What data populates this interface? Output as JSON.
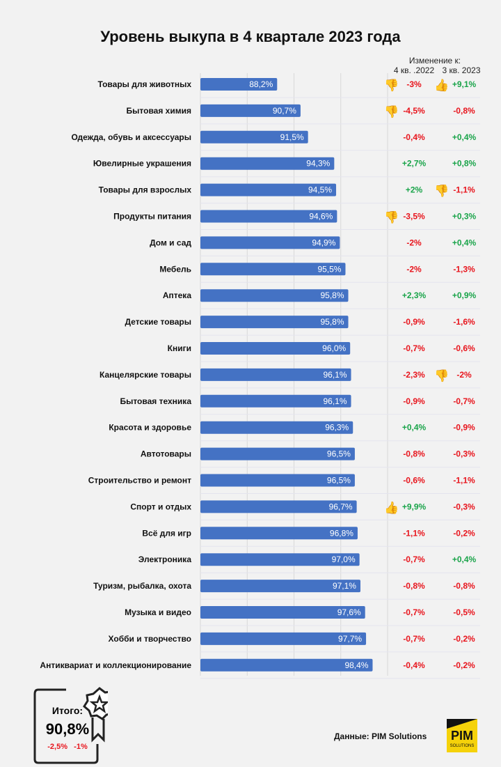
{
  "title": "Уровень выкупа в 4 квартале 2023 года",
  "change_header": "Изменение к:",
  "change_cols": [
    "4 кв. .2022",
    "3 кв. 2023"
  ],
  "colors": {
    "bar": "#4472c4",
    "positive": "#1aa44a",
    "negative": "#e8141c",
    "thumb": "#f5b800"
  },
  "chart_data": {
    "type": "bar",
    "orientation": "horizontal",
    "title": "Уровень выкупа в 4 квартале 2023 года",
    "xlim": [
      80,
      100
    ],
    "ticks": [
      "80%",
      "85%",
      "90%",
      "95%",
      "100%"
    ],
    "grid": "vertical",
    "categories": [
      "Товары для животных",
      "Бытовая химия",
      "Одежда, обувь и аксессуары",
      "Ювелирные украшения",
      "Товары для взрослых",
      "Продукты питания",
      "Дом и сад",
      "Мебель",
      "Аптека",
      "Детские товары",
      "Книги",
      "Канцелярские товары",
      "Бытовая техника",
      "Красота и здоровье",
      "Автотовары",
      "Строительство и ремонт",
      "Спорт и отдых",
      "Всё для игр",
      "Электроника",
      "Туризм, рыбалка, охота",
      "Музыка и видео",
      "Хобби и творчество",
      "Антиквариат и коллекционирование"
    ],
    "values": [
      88.2,
      90.7,
      91.5,
      94.3,
      94.5,
      94.6,
      94.9,
      95.5,
      95.8,
      95.8,
      96.0,
      96.1,
      96.1,
      96.3,
      96.5,
      96.5,
      96.7,
      96.8,
      97.0,
      97.1,
      97.6,
      97.7,
      98.4
    ],
    "value_labels": [
      "88,2%",
      "90,7%",
      "91,5%",
      "94,3%",
      "94,5%",
      "94,6%",
      "94,9%",
      "95,5%",
      "95,8%",
      "95,8%",
      "96,0%",
      "96,1%",
      "96,1%",
      "96,3%",
      "96,5%",
      "96,5%",
      "96,7%",
      "96,8%",
      "97,0%",
      "97,1%",
      "97,6%",
      "97,7%",
      "98,4%"
    ],
    "change_vs_q4_2022": [
      "-3%",
      "-4,5%",
      "-0,4%",
      "+2,7%",
      "+2%",
      "-3,5%",
      "-2%",
      "-2%",
      "+2,3%",
      "-0,9%",
      "-0,7%",
      "-2,3%",
      "-0,9%",
      "+0,4%",
      "-0,8%",
      "-0,6%",
      "+9,9%",
      "-1,1%",
      "-0,7%",
      "-0,8%",
      "-0,7%",
      "-0,7%",
      "-0,4%"
    ],
    "change_vs_q3_2023": [
      "+9,1%",
      "-0,8%",
      "+0,4%",
      "+0,8%",
      "-1,1%",
      "+0,3%",
      "+0,4%",
      "-1,3%",
      "+0,9%",
      "-1,6%",
      "-0,6%",
      "-2%",
      "-0,7%",
      "-0,9%",
      "-0,3%",
      "-1,1%",
      "-0,3%",
      "-0,2%",
      "+0,4%",
      "-0,8%",
      "-0,5%",
      "-0,2%",
      "-0,2%"
    ],
    "icons_q4_2022": {
      "0": "thumbs-down",
      "1": "thumbs-down",
      "5": "thumbs-down",
      "16": "thumbs-up"
    },
    "icons_q3_2023": {
      "0": "thumbs-up",
      "4": "thumbs-down",
      "11": "thumbs-down"
    }
  },
  "total": {
    "label": "Итого:",
    "value": "90,8%",
    "changes": [
      "-2,5%",
      "-1%"
    ]
  },
  "source": "Данные: PIM Solutions",
  "logo": {
    "text": "PIM",
    "sub": "SOLUTIONS"
  }
}
